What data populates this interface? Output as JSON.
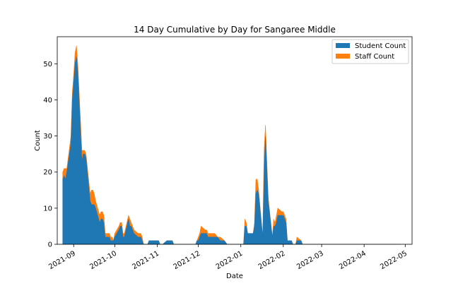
{
  "chart_data": {
    "type": "area",
    "stacked": true,
    "title": "14 Day Cumulative by Day for Sangaree Middle",
    "xlabel": "Date",
    "ylabel": "Count",
    "ylim": [
      0,
      57.5
    ],
    "xlim": [
      "2021-08-20",
      "2022-05-06"
    ],
    "y_ticks": [
      0,
      10,
      20,
      30,
      40,
      50
    ],
    "x_ticks": [
      "2021-09",
      "2021-10",
      "2021-11",
      "2021-12",
      "2022-01",
      "2022-02",
      "2022-03",
      "2022-04",
      "2022-05"
    ],
    "grid": false,
    "legend_position": "top-right",
    "series": [
      {
        "name": "Student Count",
        "color": "#1f77b4",
        "points": [
          [
            "2021-08-24",
            18
          ],
          [
            "2021-08-25",
            19
          ],
          [
            "2021-08-26",
            18
          ],
          [
            "2021-08-27",
            20
          ],
          [
            "2021-08-30",
            28
          ],
          [
            "2021-08-31",
            40
          ],
          [
            "2021-09-01",
            45
          ],
          [
            "2021-09-02",
            50
          ],
          [
            "2021-09-03",
            52
          ],
          [
            "2021-09-04",
            48
          ],
          [
            "2021-09-07",
            23
          ],
          [
            "2021-09-08",
            25
          ],
          [
            "2021-09-09",
            25
          ],
          [
            "2021-09-10",
            24
          ],
          [
            "2021-09-13",
            12
          ],
          [
            "2021-09-14",
            11
          ],
          [
            "2021-09-15",
            11
          ],
          [
            "2021-09-16",
            11
          ],
          [
            "2021-09-17",
            10
          ],
          [
            "2021-09-20",
            6
          ],
          [
            "2021-09-21",
            7
          ],
          [
            "2021-09-22",
            7
          ],
          [
            "2021-09-23",
            6
          ],
          [
            "2021-09-24",
            2
          ],
          [
            "2021-09-27",
            2
          ],
          [
            "2021-09-28",
            1
          ],
          [
            "2021-09-29",
            1
          ],
          [
            "2021-09-30",
            1
          ],
          [
            "2021-10-01",
            2
          ],
          [
            "2021-10-04",
            4
          ],
          [
            "2021-10-05",
            5
          ],
          [
            "2021-10-06",
            5
          ],
          [
            "2021-10-07",
            2
          ],
          [
            "2021-10-08",
            2
          ],
          [
            "2021-10-11",
            7
          ],
          [
            "2021-10-12",
            5
          ],
          [
            "2021-10-13",
            5
          ],
          [
            "2021-10-14",
            4
          ],
          [
            "2021-10-15",
            3
          ],
          [
            "2021-10-18",
            2
          ],
          [
            "2021-10-19",
            2
          ],
          [
            "2021-10-20",
            2
          ],
          [
            "2021-10-21",
            1
          ],
          [
            "2021-10-22",
            0
          ],
          [
            "2021-10-25",
            0
          ],
          [
            "2021-10-26",
            1
          ],
          [
            "2021-10-27",
            1
          ],
          [
            "2021-10-28",
            1
          ],
          [
            "2021-10-29",
            1
          ],
          [
            "2021-11-01",
            1
          ],
          [
            "2021-11-02",
            1
          ],
          [
            "2021-11-03",
            0
          ],
          [
            "2021-11-05",
            0
          ],
          [
            "2021-11-08",
            1
          ],
          [
            "2021-11-09",
            1
          ],
          [
            "2021-11-10",
            1
          ],
          [
            "2021-11-11",
            1
          ],
          [
            "2021-11-12",
            1
          ],
          [
            "2021-11-13",
            0
          ],
          [
            "2021-11-29",
            0
          ],
          [
            "2021-11-30",
            1
          ],
          [
            "2021-12-01",
            1
          ],
          [
            "2021-12-02",
            2
          ],
          [
            "2021-12-03",
            3
          ],
          [
            "2021-12-06",
            3
          ],
          [
            "2021-12-07",
            3
          ],
          [
            "2021-12-08",
            2
          ],
          [
            "2021-12-10",
            2
          ],
          [
            "2021-12-13",
            2
          ],
          [
            "2021-12-15",
            2
          ],
          [
            "2021-12-17",
            1
          ],
          [
            "2021-12-20",
            1
          ],
          [
            "2021-12-22",
            0
          ],
          [
            "2022-01-03",
            0
          ],
          [
            "2022-01-04",
            5
          ],
          [
            "2022-01-05",
            5
          ],
          [
            "2022-01-06",
            3
          ],
          [
            "2022-01-07",
            3
          ],
          [
            "2022-01-10",
            3
          ],
          [
            "2022-01-11",
            5
          ],
          [
            "2022-01-12",
            14
          ],
          [
            "2022-01-13",
            15
          ],
          [
            "2022-01-14",
            14
          ],
          [
            "2022-01-17",
            2
          ],
          [
            "2022-01-18",
            20
          ],
          [
            "2022-01-19",
            30
          ],
          [
            "2022-01-20",
            21
          ],
          [
            "2022-01-21",
            12
          ],
          [
            "2022-01-24",
            2
          ],
          [
            "2022-01-25",
            5
          ],
          [
            "2022-01-26",
            5
          ],
          [
            "2022-01-27",
            6
          ],
          [
            "2022-01-28",
            8
          ],
          [
            "2022-01-31",
            8
          ],
          [
            "2022-02-01",
            8
          ],
          [
            "2022-02-02",
            7
          ],
          [
            "2022-02-03",
            6
          ],
          [
            "2022-02-04",
            1
          ],
          [
            "2022-02-07",
            1
          ],
          [
            "2022-02-08",
            0
          ],
          [
            "2022-02-10",
            0
          ],
          [
            "2022-02-11",
            1
          ],
          [
            "2022-02-14",
            1
          ],
          [
            "2022-02-15",
            0
          ],
          [
            "2022-02-18",
            0
          ],
          [
            "2022-04-28",
            0
          ]
        ]
      },
      {
        "name": "Staff Count",
        "color": "#ff7f0e",
        "points": [
          [
            "2021-08-24",
            2
          ],
          [
            "2021-08-25",
            2
          ],
          [
            "2021-08-26",
            3
          ],
          [
            "2021-08-27",
            1
          ],
          [
            "2021-08-30",
            2
          ],
          [
            "2021-08-31",
            2
          ],
          [
            "2021-09-01",
            2
          ],
          [
            "2021-09-02",
            3
          ],
          [
            "2021-09-03",
            3
          ],
          [
            "2021-09-04",
            2
          ],
          [
            "2021-09-07",
            3
          ],
          [
            "2021-09-08",
            1
          ],
          [
            "2021-09-09",
            1
          ],
          [
            "2021-09-10",
            1
          ],
          [
            "2021-09-13",
            2
          ],
          [
            "2021-09-14",
            4
          ],
          [
            "2021-09-15",
            4
          ],
          [
            "2021-09-16",
            3
          ],
          [
            "2021-09-17",
            2
          ],
          [
            "2021-09-20",
            2
          ],
          [
            "2021-09-21",
            2
          ],
          [
            "2021-09-22",
            2
          ],
          [
            "2021-09-23",
            2
          ],
          [
            "2021-09-24",
            1
          ],
          [
            "2021-09-27",
            1
          ],
          [
            "2021-09-28",
            1
          ],
          [
            "2021-09-29",
            1
          ],
          [
            "2021-09-30",
            0
          ],
          [
            "2021-10-01",
            1
          ],
          [
            "2021-10-04",
            1
          ],
          [
            "2021-10-05",
            1
          ],
          [
            "2021-10-06",
            1
          ],
          [
            "2021-10-07",
            1
          ],
          [
            "2021-10-08",
            1
          ],
          [
            "2021-10-11",
            1
          ],
          [
            "2021-10-12",
            2
          ],
          [
            "2021-10-13",
            1
          ],
          [
            "2021-10-14",
            1
          ],
          [
            "2021-10-15",
            1
          ],
          [
            "2021-10-18",
            1
          ],
          [
            "2021-10-19",
            1
          ],
          [
            "2021-10-20",
            1
          ],
          [
            "2021-10-21",
            1
          ],
          [
            "2021-10-22",
            0
          ],
          [
            "2021-10-25",
            0
          ],
          [
            "2021-10-26",
            0
          ],
          [
            "2021-10-27",
            0
          ],
          [
            "2021-10-28",
            0
          ],
          [
            "2021-10-29",
            0
          ],
          [
            "2021-11-01",
            0
          ],
          [
            "2021-11-02",
            0
          ],
          [
            "2021-11-03",
            0
          ],
          [
            "2021-11-05",
            0
          ],
          [
            "2021-11-08",
            0
          ],
          [
            "2021-11-09",
            0
          ],
          [
            "2021-11-10",
            0
          ],
          [
            "2021-11-11",
            0
          ],
          [
            "2021-11-12",
            0
          ],
          [
            "2021-11-13",
            0
          ],
          [
            "2021-11-29",
            0
          ],
          [
            "2021-11-30",
            0
          ],
          [
            "2021-12-01",
            1
          ],
          [
            "2021-12-02",
            1
          ],
          [
            "2021-12-03",
            2
          ],
          [
            "2021-12-06",
            1
          ],
          [
            "2021-12-07",
            1
          ],
          [
            "2021-12-08",
            1
          ],
          [
            "2021-12-10",
            1
          ],
          [
            "2021-12-13",
            1
          ],
          [
            "2021-12-15",
            0
          ],
          [
            "2021-12-17",
            1
          ],
          [
            "2021-12-20",
            0
          ],
          [
            "2021-12-22",
            0
          ],
          [
            "2022-01-03",
            0
          ],
          [
            "2022-01-04",
            2
          ],
          [
            "2022-01-05",
            1
          ],
          [
            "2022-01-06",
            0
          ],
          [
            "2022-01-07",
            0
          ],
          [
            "2022-01-10",
            0
          ],
          [
            "2022-01-11",
            1
          ],
          [
            "2022-01-12",
            4
          ],
          [
            "2022-01-13",
            3
          ],
          [
            "2022-01-14",
            1
          ],
          [
            "2022-01-17",
            0
          ],
          [
            "2022-01-18",
            6
          ],
          [
            "2022-01-19",
            3
          ],
          [
            "2022-01-20",
            2
          ],
          [
            "2022-01-21",
            1
          ],
          [
            "2022-01-24",
            0
          ],
          [
            "2022-01-25",
            2
          ],
          [
            "2022-01-26",
            1
          ],
          [
            "2022-01-27",
            2
          ],
          [
            "2022-01-28",
            2
          ],
          [
            "2022-01-31",
            1
          ],
          [
            "2022-02-01",
            1
          ],
          [
            "2022-02-02",
            1
          ],
          [
            "2022-02-03",
            1
          ],
          [
            "2022-02-04",
            0
          ],
          [
            "2022-02-07",
            0
          ],
          [
            "2022-02-08",
            0
          ],
          [
            "2022-02-10",
            0
          ],
          [
            "2022-02-11",
            1
          ],
          [
            "2022-02-14",
            0
          ],
          [
            "2022-02-15",
            0
          ],
          [
            "2022-02-18",
            0
          ],
          [
            "2022-04-28",
            0
          ]
        ]
      }
    ]
  }
}
